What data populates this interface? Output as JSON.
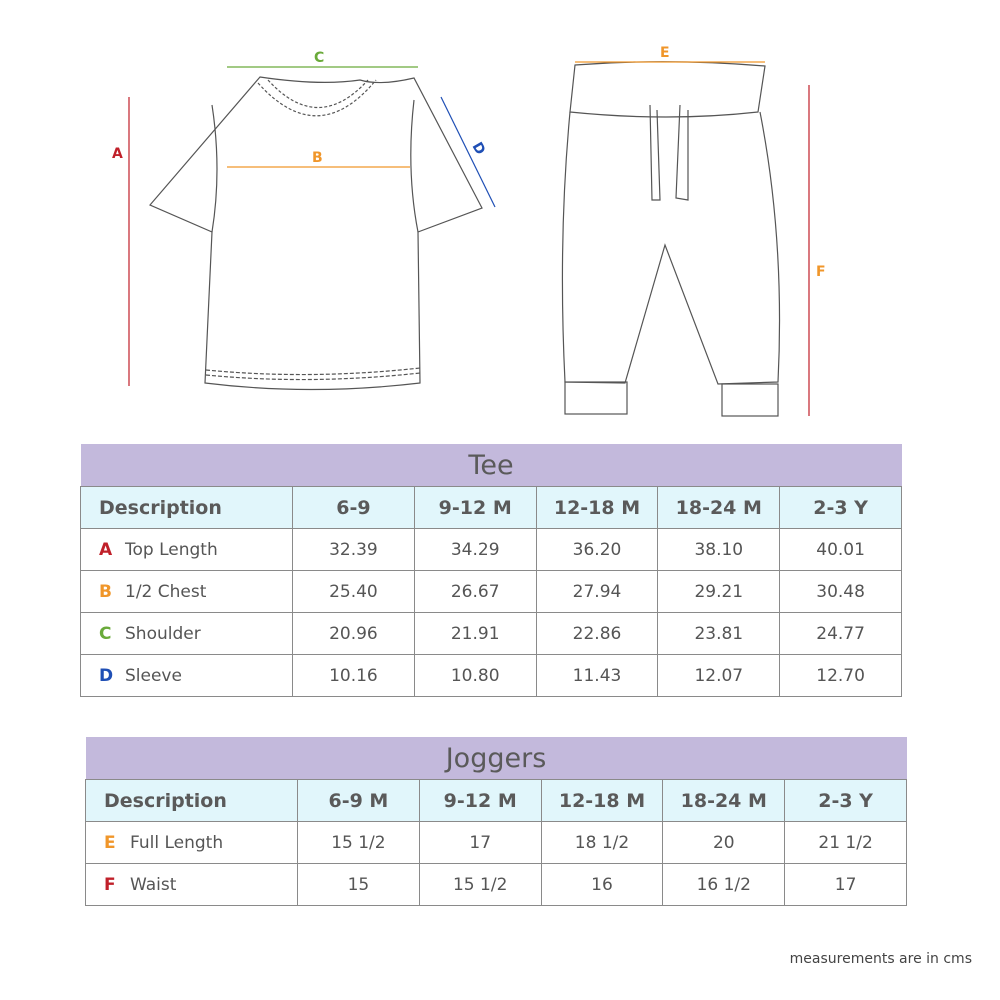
{
  "colors": {
    "A": "#c0202a",
    "B": "#f0962a",
    "C": "#6aaa3a",
    "D": "#1f4fb5",
    "E": "#f0962a",
    "F": "#c0202a",
    "title_bg": "#c3b9dc",
    "header_bg": "#e1f6fb"
  },
  "diagram": {
    "labels": {
      "A": "A",
      "B": "B",
      "C": "C",
      "D": "D",
      "E": "E",
      "F": "F"
    }
  },
  "tee": {
    "title": "Tee",
    "headers": [
      "Description",
      "6-9",
      "9-12 M",
      "12-18 M",
      "18-24 M",
      "2-3 Y"
    ],
    "rows": [
      {
        "letter": "A",
        "name": "Top Length",
        "values": [
          "32.39",
          "34.29",
          "36.20",
          "38.10",
          "40.01"
        ]
      },
      {
        "letter": "B",
        "name": "1/2 Chest",
        "values": [
          "25.40",
          "26.67",
          "27.94",
          "29.21",
          "30.48"
        ]
      },
      {
        "letter": "C",
        "name": "Shoulder",
        "values": [
          "20.96",
          "21.91",
          "22.86",
          "23.81",
          "24.77"
        ]
      },
      {
        "letter": "D",
        "name": "Sleeve",
        "values": [
          "10.16",
          "10.80",
          "11.43",
          "12.07",
          "12.70"
        ]
      }
    ]
  },
  "joggers": {
    "title": "Joggers",
    "headers": [
      "Description",
      "6-9 M",
      "9-12 M",
      "12-18 M",
      "18-24 M",
      "2-3 Y"
    ],
    "rows": [
      {
        "letter": "E",
        "name": "Full Length",
        "values": [
          "15 1/2",
          "17",
          "18 1/2",
          "20",
          "21 1/2"
        ]
      },
      {
        "letter": "F",
        "name": "Waist",
        "values": [
          "15",
          "15 1/2",
          "16",
          "16 1/2",
          "17"
        ]
      }
    ]
  },
  "note": "measurements are in cms"
}
